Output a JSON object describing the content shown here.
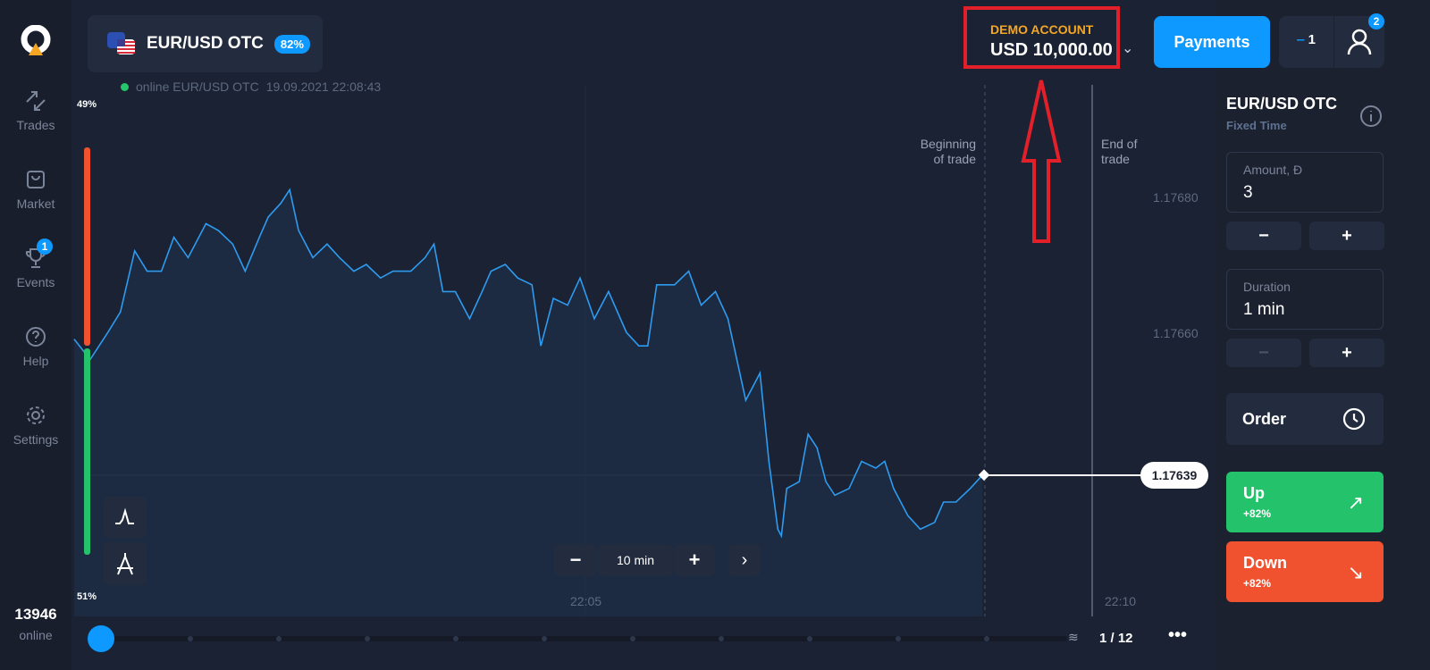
{
  "sidebar": {
    "items": [
      {
        "label": "Trades",
        "icon": "trades-icon"
      },
      {
        "label": "Market",
        "icon": "market-icon"
      },
      {
        "label": "Events",
        "icon": "trophy-icon",
        "badge": "1"
      },
      {
        "label": "Help",
        "icon": "help-icon"
      },
      {
        "label": "Settings",
        "icon": "gear-icon"
      }
    ],
    "online_count": "13946",
    "online_label": "online"
  },
  "header": {
    "asset": "EUR/USD OTC",
    "payout": "82%",
    "status": "online EUR/USD OTC",
    "datetime": "19.09.2021 22:08:43",
    "account_label": "DEMO ACCOUNT",
    "balance": "USD 10,000.00",
    "payments": "Payments",
    "trades_count": "1",
    "notif_badge": "2"
  },
  "chart": {
    "sell_pct": "49%",
    "buy_pct": "51%",
    "begin_label_1": "Beginning",
    "begin_label_2": "of trade",
    "end_label_1": "End of",
    "end_label_2": "trade",
    "y_ticks": [
      "1.17680",
      "1.17660"
    ],
    "x_ticks": [
      "22:05",
      "22:10"
    ],
    "current_price": "1.17639",
    "timeframe": "10 min",
    "page": "1 / 12",
    "colors": {
      "line": "#2d9cf0",
      "up": "#24c26a",
      "down": "#f0512f",
      "annotation": "#e3202a"
    },
    "points": [
      [
        "22:00:13",
        1.17659
      ],
      [
        "22:00:22",
        1.17656
      ],
      [
        "22:00:32",
        1.1766
      ],
      [
        "22:00:39",
        1.17663
      ],
      [
        "22:00:47",
        1.17672
      ],
      [
        "22:00:54",
        1.17669
      ],
      [
        "22:01:02",
        1.17669
      ],
      [
        "22:01:09",
        1.17674
      ],
      [
        "22:01:17",
        1.17671
      ],
      [
        "22:01:27",
        1.17676
      ],
      [
        "22:01:34",
        1.17675
      ],
      [
        "22:01:42",
        1.17673
      ],
      [
        "22:01:49",
        1.17669
      ],
      [
        "22:01:57",
        1.17674
      ],
      [
        "22:02:02",
        1.17677
      ],
      [
        "22:02:09",
        1.17679
      ],
      [
        "22:02:14",
        1.17681
      ],
      [
        "22:02:19",
        1.17675
      ],
      [
        "22:02:27",
        1.17671
      ],
      [
        "22:02:35",
        1.17673
      ],
      [
        "22:02:42",
        1.17671
      ],
      [
        "22:02:50",
        1.17669
      ],
      [
        "22:02:57",
        1.1767
      ],
      [
        "22:03:05",
        1.17668
      ],
      [
        "22:03:12",
        1.17669
      ],
      [
        "22:03:22",
        1.17669
      ],
      [
        "22:03:30",
        1.17671
      ],
      [
        "22:03:35",
        1.17673
      ],
      [
        "22:03:40",
        1.17666
      ],
      [
        "22:03:47",
        1.17666
      ],
      [
        "22:03:55",
        1.17662
      ],
      [
        "22:04:02",
        1.17666
      ],
      [
        "22:04:07",
        1.17669
      ],
      [
        "22:04:15",
        1.1767
      ],
      [
        "22:04:22",
        1.17668
      ],
      [
        "22:04:30",
        1.17667
      ],
      [
        "22:04:35",
        1.17658
      ],
      [
        "22:04:42",
        1.17665
      ],
      [
        "22:04:50",
        1.17664
      ],
      [
        "22:04:57",
        1.17668
      ],
      [
        "22:05:05",
        1.17662
      ],
      [
        "22:05:13",
        1.17666
      ],
      [
        "22:05:23",
        1.1766
      ],
      [
        "22:05:30",
        1.17658
      ],
      [
        "22:05:35",
        1.17658
      ],
      [
        "22:05:40",
        1.17667
      ],
      [
        "22:05:50",
        1.17667
      ],
      [
        "22:05:58",
        1.17669
      ],
      [
        "22:06:05",
        1.17664
      ],
      [
        "22:06:13",
        1.17666
      ],
      [
        "22:06:20",
        1.17662
      ],
      [
        "22:06:25",
        1.17656
      ],
      [
        "22:06:30",
        1.1765
      ],
      [
        "22:06:38",
        1.17654
      ],
      [
        "22:06:43",
        1.17641
      ],
      [
        "22:06:48",
        1.17631
      ],
      [
        "22:06:50",
        1.1763
      ],
      [
        "22:06:53",
        1.17637
      ],
      [
        "22:07:00",
        1.17638
      ],
      [
        "22:07:05",
        1.17645
      ],
      [
        "22:07:10",
        1.17643
      ],
      [
        "22:07:15",
        1.17638
      ],
      [
        "22:07:20",
        1.17636
      ],
      [
        "22:07:28",
        1.17637
      ],
      [
        "22:07:35",
        1.17641
      ],
      [
        "22:07:43",
        1.1764
      ],
      [
        "22:07:48",
        1.17641
      ],
      [
        "22:07:53",
        1.17637
      ],
      [
        "22:08:01",
        1.17633
      ],
      [
        "22:08:08",
        1.17631
      ],
      [
        "22:08:16",
        1.17632
      ],
      [
        "22:08:21",
        1.17635
      ],
      [
        "22:08:28",
        1.17635
      ],
      [
        "22:08:36",
        1.17637
      ],
      [
        "22:08:43",
        1.17639
      ]
    ]
  },
  "panel": {
    "asset": "EUR/USD OTC",
    "mode": "Fixed Time",
    "amount_label": "Amount, Đ",
    "amount": "3",
    "duration_label": "Duration",
    "duration": "1 min",
    "minus": "−",
    "plus": "+",
    "order": "Order",
    "up_label": "Up",
    "up_pct": "+82%",
    "down_label": "Down",
    "down_pct": "+82%"
  }
}
